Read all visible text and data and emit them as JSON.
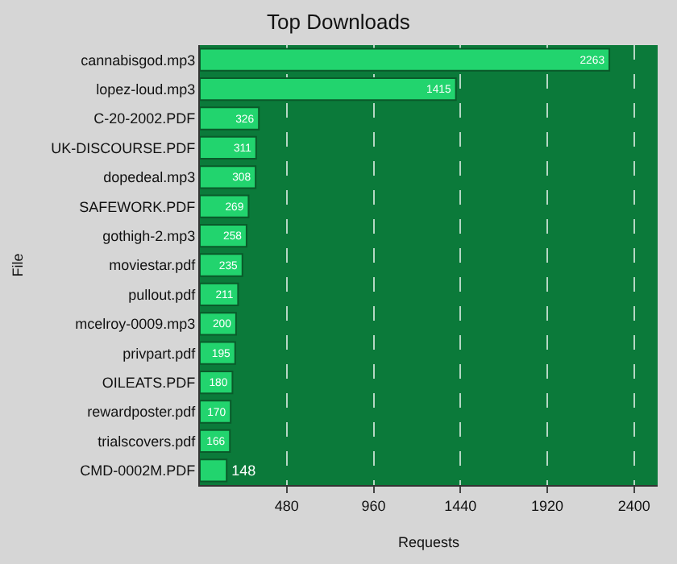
{
  "chart_data": {
    "type": "bar",
    "orientation": "horizontal",
    "title": "Top Downloads",
    "xlabel": "Requests",
    "ylabel": "File",
    "categories": [
      "cannabisgod.mp3",
      "lopez-loud.mp3",
      "C-20-2002.PDF",
      "UK-DISCOURSE.PDF",
      "dopedeal.mp3",
      "SAFEWORK.PDF",
      "gothigh-2.mp3",
      "moviestar.pdf",
      "pullout.pdf",
      "mcelroy-0009.mp3",
      "privpart.pdf",
      "OILEATS.PDF",
      "rewardposter.pdf",
      "trialscovers.pdf",
      "CMD-0002M.PDF"
    ],
    "values": [
      2263,
      1415,
      326,
      311,
      308,
      269,
      258,
      235,
      211,
      200,
      195,
      180,
      170,
      166,
      148
    ],
    "color": "#22d46e",
    "data_labels": true,
    "grid": "x",
    "xlim": [
      0,
      2530
    ],
    "xticks": [
      480,
      960,
      1440,
      1920,
      2400
    ]
  }
}
